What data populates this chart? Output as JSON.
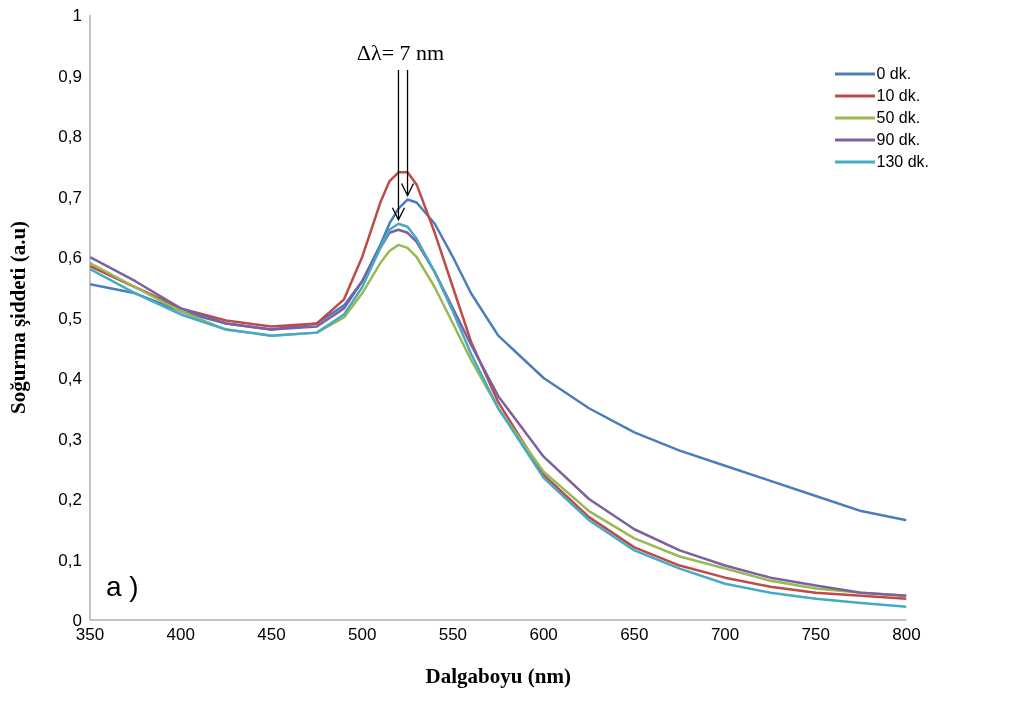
{
  "chart_data": {
    "type": "line",
    "xlabel": "Dalgaboyu (nm)",
    "ylabel": "Soğurma şiddeti (a.u)",
    "x": [
      350,
      375,
      400,
      425,
      450,
      475,
      490,
      500,
      510,
      515,
      520,
      525,
      530,
      540,
      550,
      560,
      575,
      600,
      625,
      650,
      675,
      700,
      725,
      750,
      775,
      800
    ],
    "series": [
      {
        "name": "0 dk.",
        "color": "#4a7ebb",
        "values": [
          0.555,
          0.54,
          0.51,
          0.49,
          0.48,
          0.49,
          0.52,
          0.56,
          0.62,
          0.655,
          0.68,
          0.695,
          0.69,
          0.655,
          0.6,
          0.54,
          0.47,
          0.4,
          0.35,
          0.31,
          0.28,
          0.255,
          0.23,
          0.205,
          0.18,
          0.165
        ]
      },
      {
        "name": "10 dk.",
        "color": "#be4b48",
        "values": [
          0.585,
          0.55,
          0.515,
          0.495,
          0.485,
          0.49,
          0.53,
          0.6,
          0.69,
          0.725,
          0.74,
          0.74,
          0.72,
          0.64,
          0.55,
          0.46,
          0.36,
          0.24,
          0.17,
          0.12,
          0.09,
          0.07,
          0.055,
          0.045,
          0.04,
          0.035
        ]
      },
      {
        "name": "50 dk.",
        "color": "#98b954",
        "values": [
          0.59,
          0.55,
          0.51,
          0.48,
          0.47,
          0.475,
          0.5,
          0.54,
          0.59,
          0.61,
          0.62,
          0.615,
          0.6,
          0.55,
          0.49,
          0.43,
          0.35,
          0.245,
          0.18,
          0.135,
          0.105,
          0.085,
          0.065,
          0.052,
          0.045,
          0.04
        ]
      },
      {
        "name": "90 dk.",
        "color": "#7d60a0",
        "values": [
          0.6,
          0.56,
          0.515,
          0.49,
          0.48,
          0.485,
          0.515,
          0.56,
          0.615,
          0.64,
          0.645,
          0.64,
          0.625,
          0.575,
          0.515,
          0.455,
          0.37,
          0.27,
          0.2,
          0.15,
          0.115,
          0.09,
          0.07,
          0.057,
          0.045,
          0.04
        ]
      },
      {
        "name": "130 dk.",
        "color": "#46aac5",
        "values": [
          0.58,
          0.54,
          0.505,
          0.48,
          0.47,
          0.475,
          0.505,
          0.55,
          0.615,
          0.645,
          0.655,
          0.65,
          0.63,
          0.575,
          0.51,
          0.44,
          0.35,
          0.235,
          0.165,
          0.115,
          0.085,
          0.06,
          0.045,
          0.035,
          0.028,
          0.022
        ]
      }
    ],
    "xlim": [
      350,
      800
    ],
    "xticks": [
      350,
      400,
      450,
      500,
      550,
      600,
      650,
      700,
      750,
      800
    ],
    "ylim": [
      0,
      1
    ],
    "yticks": [
      0,
      {
        "value": 0.1,
        "label": "0,1"
      },
      {
        "value": 0.2,
        "label": "0,2"
      },
      {
        "value": 0.3,
        "label": "0,3"
      },
      {
        "value": 0.4,
        "label": "0,4"
      },
      {
        "value": 0.5,
        "label": "0,5"
      },
      {
        "value": 0.6,
        "label": "0,6"
      },
      {
        "value": 0.7,
        "label": "0,7"
      },
      {
        "value": 0.8,
        "label": "0,8"
      },
      {
        "value": 0.9,
        "label": "0,9"
      },
      1
    ],
    "grid": false,
    "legend": "top right",
    "marker": "none",
    "line_style": "solid",
    "annotations": [
      {
        "text": "Δλ= 7 nm",
        "x": 525,
        "y": 0.695
      },
      "a )"
    ]
  }
}
